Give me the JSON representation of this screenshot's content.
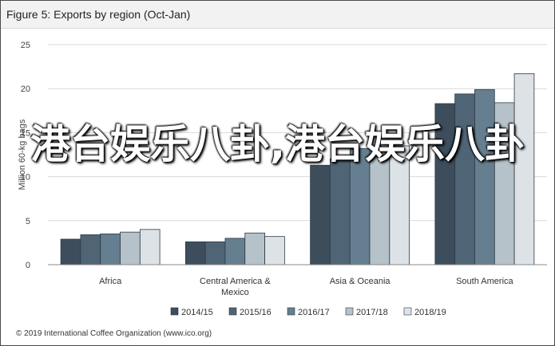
{
  "figure": {
    "title": "Figure 5: Exports by region (Oct-Jan)",
    "footer": "© 2019 International Coffee Organization (www.ico.org)",
    "overlay_text": "港台娱乐八卦,港台娱乐八卦"
  },
  "chart_data": {
    "type": "bar",
    "title": "Figure 5: Exports by region (Oct-Jan)",
    "ylabel": "Million 60-kg bags",
    "xlabel": "",
    "ylim": [
      0,
      25
    ],
    "yticks": [
      0,
      5,
      10,
      15,
      20,
      25
    ],
    "grid": true,
    "legend_position": "bottom",
    "categories": [
      "Africa",
      "Central America & Mexico",
      "Asia & Oceania",
      "South America"
    ],
    "category_labels": [
      [
        "Africa"
      ],
      [
        "Central America &",
        "Mexico"
      ],
      [
        "Asia & Oceania"
      ],
      [
        "South America"
      ]
    ],
    "series": [
      {
        "name": "2014/15",
        "color": "#3d4d5c",
        "values": [
          2.9,
          2.6,
          11.3,
          18.3
        ]
      },
      {
        "name": "2015/16",
        "color": "#4f6576",
        "values": [
          3.4,
          2.6,
          12.0,
          19.4
        ]
      },
      {
        "name": "2016/17",
        "color": "#667f90",
        "values": [
          3.5,
          3.0,
          13.2,
          19.9
        ]
      },
      {
        "name": "2017/18",
        "color": "#b6c2ca",
        "values": [
          3.7,
          3.6,
          12.9,
          18.4
        ]
      },
      {
        "name": "2018/19",
        "color": "#dde2e6",
        "values": [
          4.0,
          3.2,
          13.5,
          21.7
        ]
      }
    ]
  }
}
